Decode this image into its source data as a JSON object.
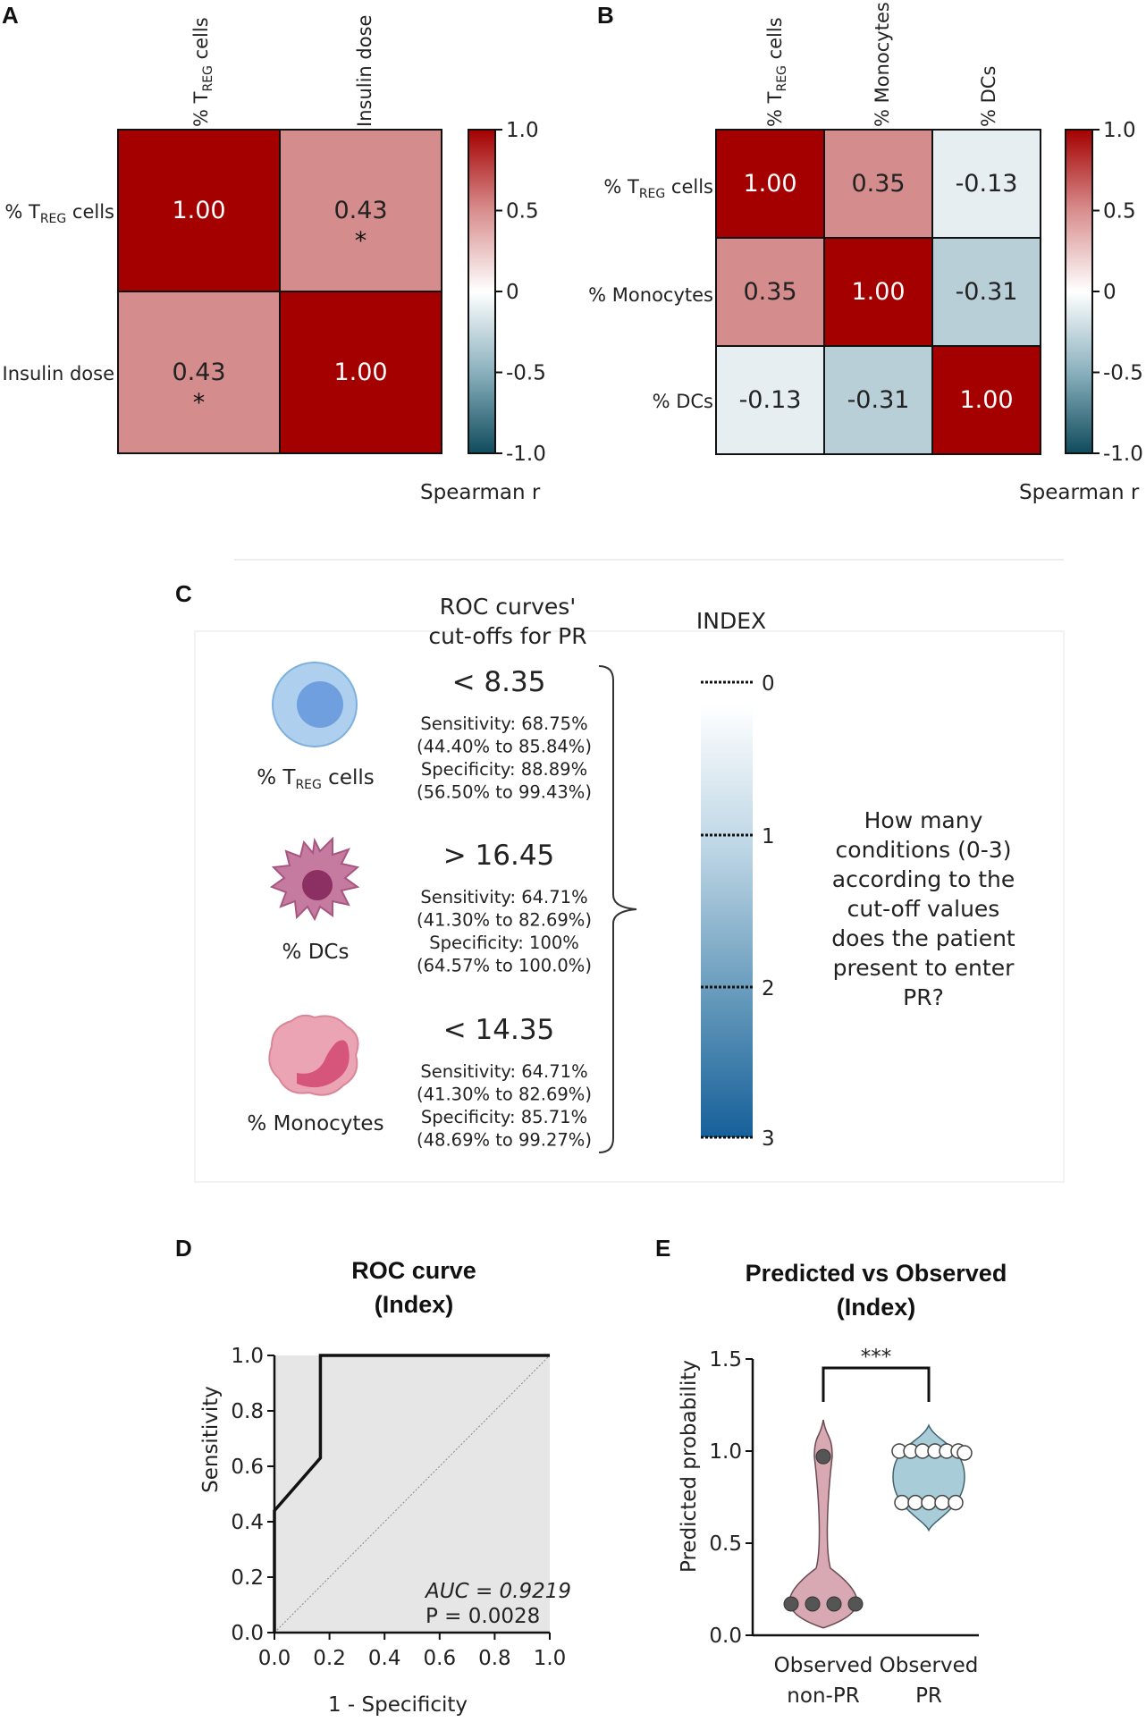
{
  "panels": {
    "a": "A",
    "b": "B",
    "c": "C",
    "d": "D",
    "e": "E"
  },
  "colors": {
    "red": "#a50000",
    "pink": "#d48c8c",
    "light": "#e6eef2",
    "bluegray": "#b9cfd8",
    "darkblue": "#0f4b5c",
    "roc_fill": "#e6e6e6",
    "violin_nonpr": "#d8a9b2",
    "violin_pr": "#a8cdd8"
  },
  "colorbar": {
    "ticks": [
      "1.0",
      "0.5",
      "0",
      "-0.5",
      "-1.0"
    ],
    "label": "Spearman r"
  },
  "heatmap_a": {
    "col_labels": [
      {
        "main": "% T",
        "sub": "REG",
        "rest": " cells"
      },
      {
        "main": "Insulin dose",
        "sub": "",
        "rest": ""
      }
    ],
    "row_labels": [
      {
        "main": "% T",
        "sub": "REG",
        "rest": " cells"
      },
      {
        "main": "Insulin dose",
        "sub": "",
        "rest": ""
      }
    ],
    "cells": [
      [
        {
          "text": "1.00",
          "star": "",
          "v": 1.0
        },
        {
          "text": "0.43",
          "star": "*",
          "v": 0.43
        }
      ],
      [
        {
          "text": "0.43",
          "star": "*",
          "v": 0.43
        },
        {
          "text": "1.00",
          "star": "",
          "v": 1.0
        }
      ]
    ]
  },
  "heatmap_b": {
    "col_labels": [
      {
        "main": "% T",
        "sub": "REG",
        "rest": " cells"
      },
      {
        "main": "% Monocytes",
        "sub": "",
        "rest": ""
      },
      {
        "main": "% DCs",
        "sub": "",
        "rest": ""
      }
    ],
    "row_labels": [
      {
        "main": "% T",
        "sub": "REG",
        "rest": " cells"
      },
      {
        "main": "% Monocytes",
        "sub": "",
        "rest": ""
      },
      {
        "main": "% DCs",
        "sub": "",
        "rest": ""
      }
    ],
    "cells": [
      [
        {
          "text": "1.00",
          "v": 1.0
        },
        {
          "text": "0.35",
          "v": 0.35
        },
        {
          "text": "-0.13",
          "v": -0.13
        }
      ],
      [
        {
          "text": "0.35",
          "v": 0.35
        },
        {
          "text": "1.00",
          "v": 1.0
        },
        {
          "text": "-0.31",
          "v": -0.31
        }
      ],
      [
        {
          "text": "-0.13",
          "v": -0.13
        },
        {
          "text": "-0.31",
          "v": -0.31
        },
        {
          "text": "1.00",
          "v": 1.0
        }
      ]
    ]
  },
  "panel_c": {
    "header_line1": "ROC curves'",
    "header_line2": "cut-offs for PR",
    "index_title": "INDEX",
    "index_ticks": [
      "0",
      "1",
      "2",
      "3"
    ],
    "cells": [
      {
        "label_main": "% T",
        "label_sub": "REG",
        "label_rest": " cells",
        "cutoff": "< 8.35",
        "lines": [
          "Sensitivity: 68.75%",
          "(44.40% to 85.84%)",
          "Specificity: 88.89%",
          "(56.50% to 99.43%)"
        ]
      },
      {
        "label_main": "% DCs",
        "label_sub": "",
        "label_rest": "",
        "cutoff": "> 16.45",
        "lines": [
          "Sensitivity: 64.71%",
          "(41.30% to 82.69%)",
          "Specificity: 100%",
          "(64.57% to 100.0%)"
        ]
      },
      {
        "label_main": "% Monocytes",
        "label_sub": "",
        "label_rest": "",
        "cutoff": "< 14.35",
        "lines": [
          "Sensitivity: 64.71%",
          "(41.30% to 82.69%)",
          "Specificity: 85.71%",
          "(48.69% to 99.27%)"
        ]
      }
    ],
    "question": [
      "How many",
      "conditions (0-3)",
      "according to the",
      "cut-off values",
      "does the patient",
      "present to enter",
      "PR?"
    ]
  },
  "chart_data": [
    {
      "type": "line",
      "title": "ROC curve",
      "subtitle": "(Index)",
      "xlabel": "1 - Specificity",
      "ylabel": "Sensitivity",
      "xlim": [
        0,
        1
      ],
      "ylim": [
        0,
        1
      ],
      "xticks": [
        "0.0",
        "0.2",
        "0.4",
        "0.6",
        "0.8",
        "1.0"
      ],
      "yticks": [
        "0.0",
        "0.2",
        "0.4",
        "0.6",
        "0.8",
        "1.0"
      ],
      "x": [
        0.0,
        0.0,
        0.167,
        0.167,
        1.0
      ],
      "y": [
        0.0,
        0.44,
        0.63,
        1.0,
        1.0
      ],
      "annotations": [
        "AUC = 0.9219",
        "P = 0.0028"
      ]
    },
    {
      "type": "scatter",
      "title": "Predicted vs Observed",
      "subtitle": "(Index)",
      "ylabel": "Predicted probability",
      "ylim": [
        0,
        1.5
      ],
      "yticks": [
        "0.0",
        "0.5",
        "1.0",
        "1.5"
      ],
      "categories": [
        [
          "Observed",
          "non-PR"
        ],
        [
          "Observed",
          "PR"
        ]
      ],
      "significance": "***",
      "series": [
        {
          "name": "Observed non-PR",
          "values": [
            0.97,
            0.17,
            0.17,
            0.17,
            0.17
          ]
        },
        {
          "name": "Observed PR",
          "values": [
            1.0,
            1.0,
            1.0,
            1.0,
            1.0,
            1.0,
            0.99,
            0.72,
            0.72,
            0.72,
            0.72,
            0.72
          ]
        }
      ]
    }
  ]
}
